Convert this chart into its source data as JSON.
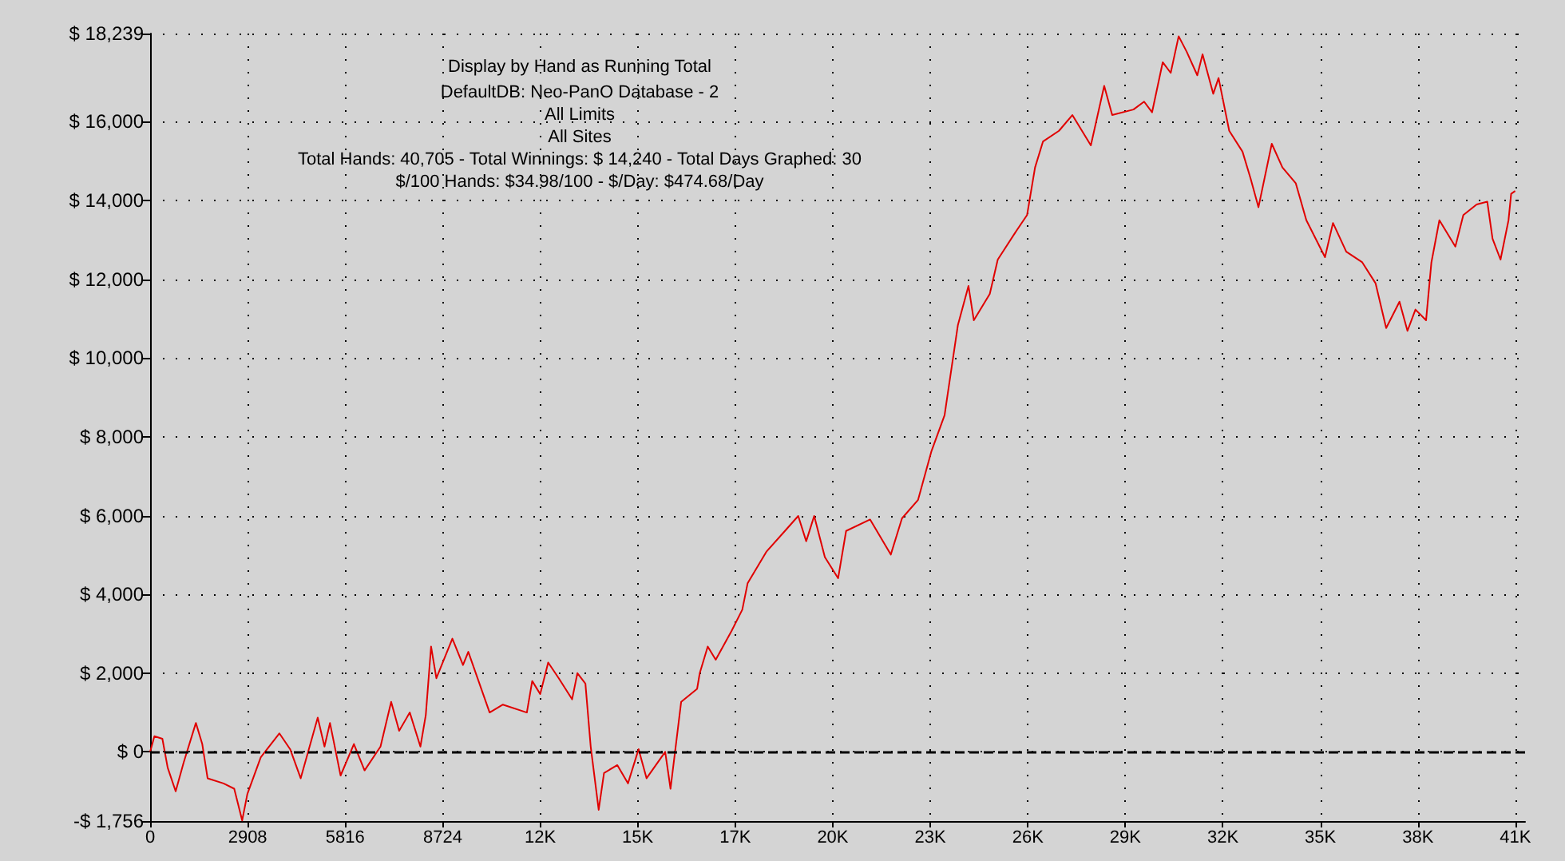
{
  "chart_data": {
    "type": "line",
    "title": "Display by Hand as Running Total",
    "subtitle": "DefaultDB: Neo-PanO Database - 2\nAll Limits\nAll Sites\nTotal Hands: 40,705 - Total Winnings: $ 14,240 - Total Days Graphed: 30\n$/100 Hands: $34.98/100 - $/Day: $474.68/Day",
    "grid": true,
    "xlim": [
      0,
      41000
    ],
    "xticks": [
      0,
      {
        "value": 2908,
        "label": "2908"
      },
      {
        "value": 5816,
        "label": "5816"
      },
      {
        "value": 8724,
        "label": "8724"
      },
      {
        "value": 11632,
        "label": "12K"
      },
      {
        "value": 14540,
        "label": "15K"
      },
      {
        "value": 17448,
        "label": "17K"
      },
      {
        "value": 20356,
        "label": "20K"
      },
      {
        "value": 23264,
        "label": "23K"
      },
      {
        "value": 26172,
        "label": "26K"
      },
      {
        "value": 29080,
        "label": "29K"
      },
      {
        "value": 31988,
        "label": "32K"
      },
      {
        "value": 34896,
        "label": "35K"
      },
      {
        "value": 37804,
        "label": "38K"
      },
      {
        "value": 40712,
        "label": "41K"
      }
    ],
    "ylim": [
      -1756,
      18239
    ],
    "yticks": [
      {
        "value": -1756,
        "label": "-$ 1,756"
      },
      {
        "value": 0,
        "label": "$ 0"
      },
      {
        "value": 2000,
        "label": "$ 2,000"
      },
      {
        "value": 4000,
        "label": "$ 4,000"
      },
      {
        "value": 6000,
        "label": "$ 6,000"
      },
      {
        "value": 8000,
        "label": "$ 8,000"
      },
      {
        "value": 10000,
        "label": "$ 10,000"
      },
      {
        "value": 12000,
        "label": "$ 12,000"
      },
      {
        "value": 14000,
        "label": "$ 14,000"
      },
      {
        "value": 16000,
        "label": "$ 16,000"
      },
      {
        "value": 18239,
        "label": "$ 18,239"
      }
    ],
    "ref_lines": [
      {
        "axis": "y",
        "value": 0,
        "color": "#000000",
        "line_style": "dashed"
      }
    ],
    "x": [
      0,
      128,
      366,
      524,
      762,
      1000,
      1365,
      1555,
      1714,
      2190,
      2508,
      2745,
      2900,
      3300,
      3856,
      4175,
      4490,
      4998,
      5200,
      5363,
      5680,
      6077,
      6395,
      6870,
      7188,
      7426,
      7743,
      8060,
      8220,
      8378,
      8536,
      9013,
      9330,
      9488,
      10124,
      10520,
      11234,
      11394,
      11632,
      11870,
      12186,
      12583,
      12742,
      12980,
      13138,
      13376,
      13535,
      13932,
      14249,
      14566,
      14804,
      15359,
      15518,
      15835,
      16311,
      16390,
      16628,
      16866,
      17341,
      17658,
      17817,
      18374,
      18930,
      19326,
      19564,
      19802,
      20120,
      20516,
      20754,
      21470,
      22086,
      22420,
      22900,
      23293,
      23690,
      24086,
      24403,
      24562,
      25038,
      25276,
      25832,
      26150,
      26388,
      26626,
      27102,
      27500,
      28052,
      28450,
      28688,
      29322,
      29640,
      29878,
      30195,
      30433,
      30670,
      30908,
      31226,
      31383,
      31702,
      31860,
      32178,
      32574,
      32812,
      33050,
      33447,
      33764,
      34161,
      34478,
      35034,
      35272,
      35668,
      36145,
      36541,
      36858,
      37255,
      37493,
      37731,
      38048,
      38207,
      38445,
      38921,
      39159,
      39556,
      39873,
      40030,
      40268,
      40506,
      40585,
      40705
    ],
    "series": [
      {
        "color": "#e00000",
        "values": [
          0,
          400,
          333,
          -400,
          -1000,
          -270,
          735,
          200,
          -670,
          -800,
          -935,
          -1740,
          -1070,
          -135,
          470,
          70,
          -670,
          870,
          135,
          735,
          -600,
          200,
          -470,
          135,
          1270,
          535,
          1000,
          135,
          935,
          2675,
          1870,
          2875,
          2205,
          2540,
          1000,
          1200,
          1000,
          1800,
          1470,
          2270,
          1870,
          1335,
          2000,
          1735,
          135,
          -1470,
          -535,
          -335,
          -800,
          70,
          -670,
          0,
          -935,
          1270,
          1600,
          2000,
          2675,
          2340,
          3075,
          3610,
          4280,
          5080,
          5610,
          5990,
          5350,
          5990,
          4945,
          4410,
          5610,
          5900,
          5010,
          5930,
          6400,
          7620,
          8550,
          10830,
          11830,
          10960,
          11630,
          12500,
          13230,
          13630,
          14840,
          15500,
          15770,
          16170,
          15400,
          16910,
          16170,
          16310,
          16510,
          16240,
          17510,
          17240,
          18170,
          17780,
          17180,
          17710,
          16710,
          17110,
          15770,
          15240,
          14570,
          13830,
          15440,
          14840,
          14440,
          13500,
          12560,
          13430,
          12700,
          12430,
          11900,
          10760,
          11430,
          10690,
          11230,
          10960,
          12430,
          13500,
          12830,
          13630,
          13900,
          13970,
          13030,
          12500,
          13500,
          14170,
          14240
        ]
      }
    ]
  }
}
